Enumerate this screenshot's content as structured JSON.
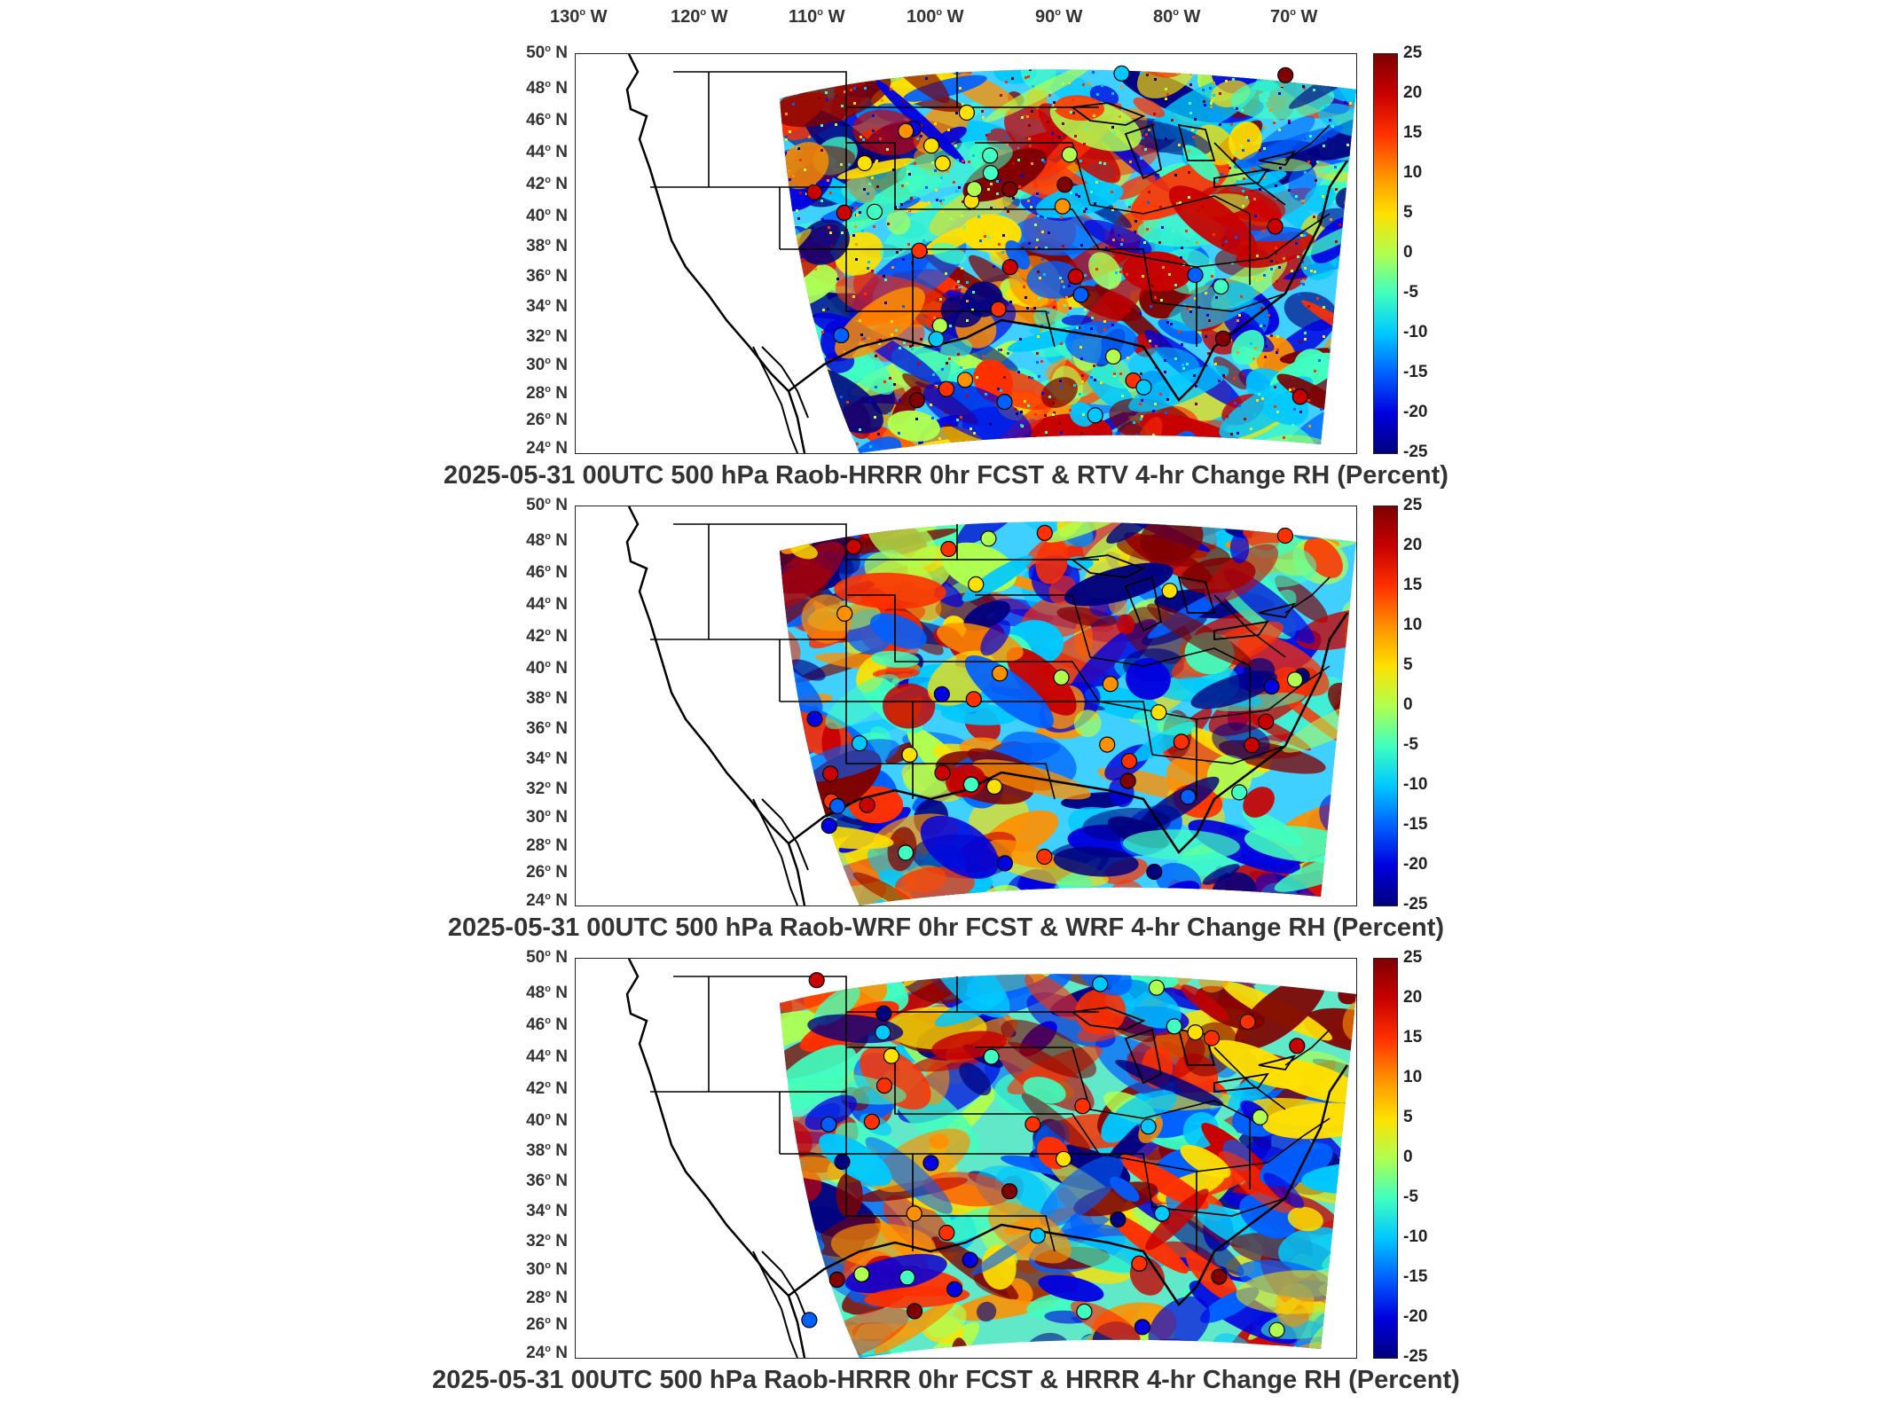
{
  "longitude_labels": [
    {
      "value": "130",
      "hemi": "W"
    },
    {
      "value": "120",
      "hemi": "W"
    },
    {
      "value": "110",
      "hemi": "W"
    },
    {
      "value": "100",
      "hemi": "W"
    },
    {
      "value": "90",
      "hemi": "W"
    },
    {
      "value": "80",
      "hemi": "W"
    },
    {
      "value": "70",
      "hemi": "W"
    }
  ],
  "latitude_labels": [
    {
      "value": "50",
      "hemi": "N"
    },
    {
      "value": "48",
      "hemi": "N"
    },
    {
      "value": "46",
      "hemi": "N"
    },
    {
      "value": "44",
      "hemi": "N"
    },
    {
      "value": "42",
      "hemi": "N"
    },
    {
      "value": "40",
      "hemi": "N"
    },
    {
      "value": "38",
      "hemi": "N"
    },
    {
      "value": "36",
      "hemi": "N"
    },
    {
      "value": "34",
      "hemi": "N"
    },
    {
      "value": "32",
      "hemi": "N"
    },
    {
      "value": "30",
      "hemi": "N"
    },
    {
      "value": "28",
      "hemi": "N"
    },
    {
      "value": "26",
      "hemi": "N"
    },
    {
      "value": "24",
      "hemi": "N"
    }
  ],
  "colorbar": {
    "ticks": [
      "25",
      "20",
      "15",
      "10",
      "5",
      "0",
      "-5",
      "-10",
      "-15",
      "-20",
      "-25"
    ],
    "range": [
      -25,
      25
    ],
    "colors": [
      "#7f0000",
      "#c80000",
      "#ff3000",
      "#ff9000",
      "#ffe000",
      "#b0ff50",
      "#40ffc0",
      "#00c8ff",
      "#0060ff",
      "#0000e0",
      "#00007f"
    ]
  },
  "panels": [
    {
      "title": "2025-05-31 00UTC 500 hPa Raob-HRRR 0hr FCST & RTV 4-hr Change RH (Percent)"
    },
    {
      "title": "2025-05-31 00UTC 500 hPa Raob-WRF 0hr FCST & WRF 4-hr Change RH (Percent)"
    },
    {
      "title": "2025-05-31 00UTC 500 hPa Raob-HRRR 0hr FCST & HRRR 4-hr Change RH (Percent)"
    }
  ]
}
